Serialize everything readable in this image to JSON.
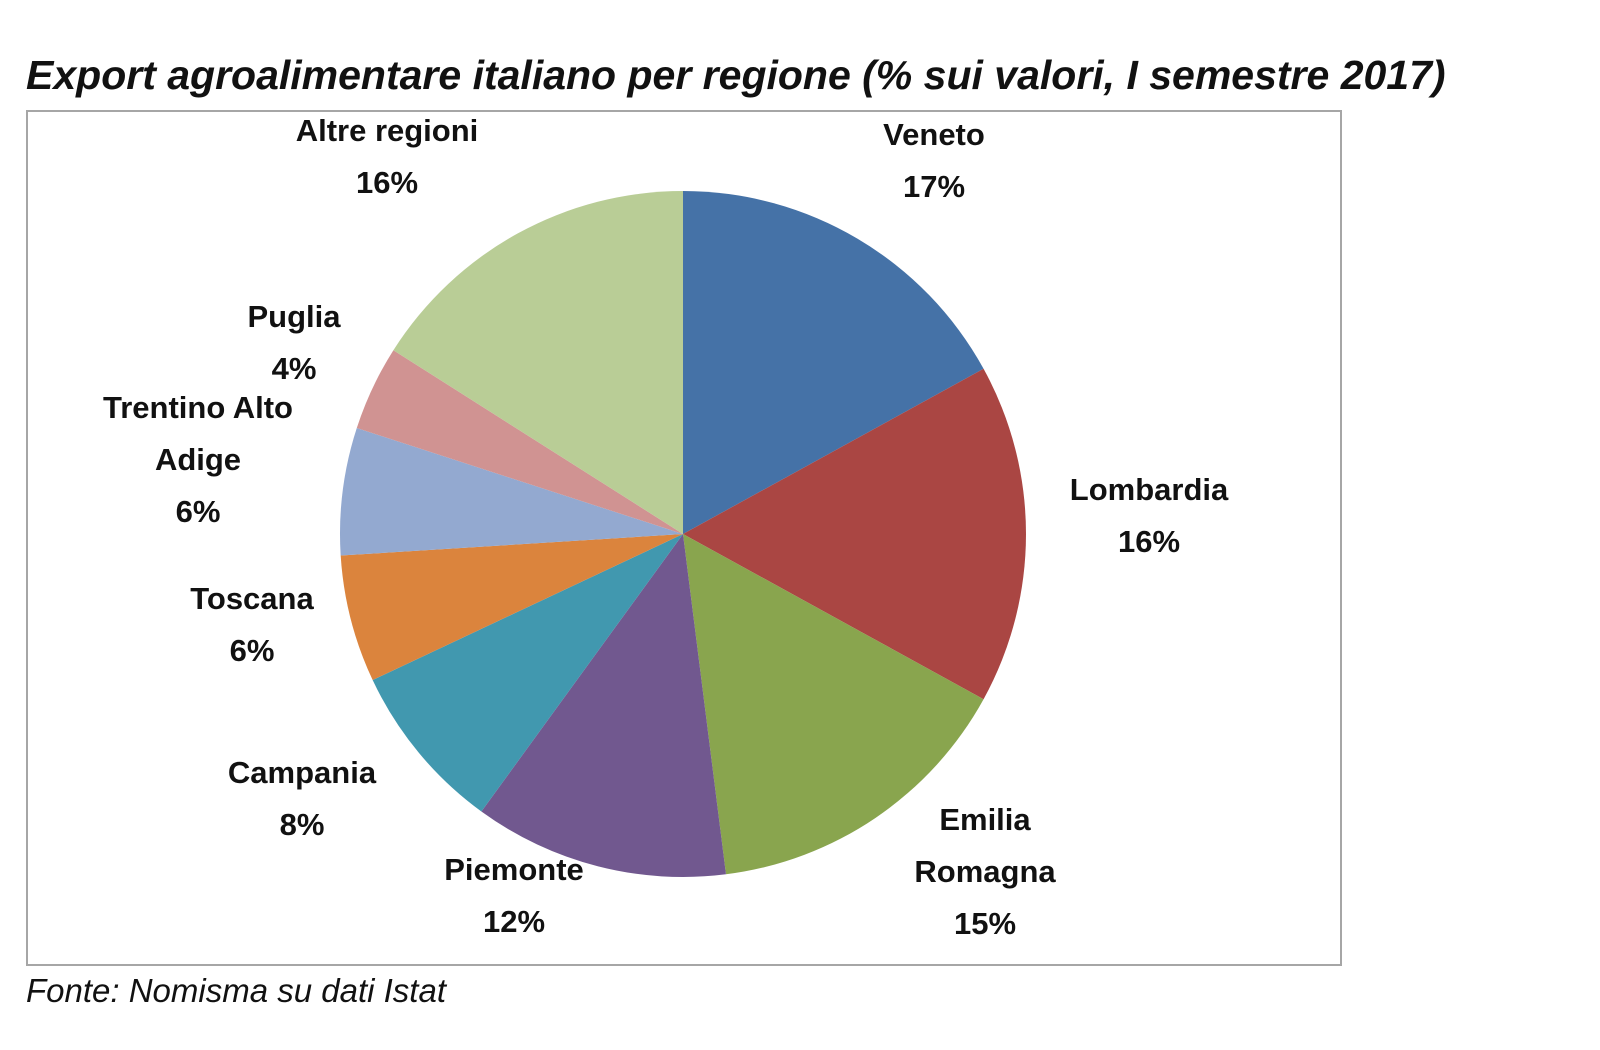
{
  "chart_data": {
    "type": "pie",
    "title": "Export agroalimentare italiano per regione (% sui valori, I semestre 2017)",
    "source": "Fonte: Nomisma su dati Istat",
    "slices": [
      {
        "name": "Veneto",
        "value": 17,
        "value_label": "17%",
        "color": "#4572a7"
      },
      {
        "name": "Lombardia",
        "value": 16,
        "value_label": "16%",
        "color": "#aa4643"
      },
      {
        "name": "Emilia Romagna",
        "value": 15,
        "value_label": "15%",
        "color": "#89a54e"
      },
      {
        "name": "Piemonte",
        "value": 12,
        "value_label": "12%",
        "color": "#71588f"
      },
      {
        "name": "Campania",
        "value": 8,
        "value_label": "8%",
        "color": "#4198af"
      },
      {
        "name": "Toscana",
        "value": 6,
        "value_label": "6%",
        "color": "#db843d"
      },
      {
        "name": "Trentino Alto Adige",
        "value": 6,
        "value_label": "6%",
        "color": "#93a9d0"
      },
      {
        "name": "Puglia",
        "value": 4,
        "value_label": "4%",
        "color": "#d09392"
      },
      {
        "name": "Altre regioni",
        "value": 16,
        "value_label": "16%",
        "color": "#b9cd96"
      }
    ]
  }
}
